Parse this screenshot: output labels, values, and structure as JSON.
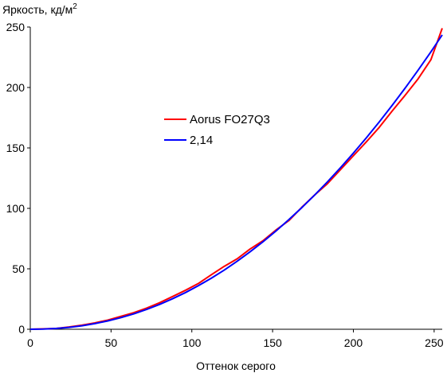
{
  "chart_data": {
    "type": "line",
    "title": "",
    "ylabel_main": "Яркость, кд/м",
    "ylabel_sup": "2",
    "xlabel": "Оттенок серого",
    "xlim": [
      0,
      255
    ],
    "ylim": [
      0,
      250
    ],
    "xticks": [
      0,
      50,
      100,
      150,
      200,
      250
    ],
    "yticks": [
      0,
      50,
      100,
      150,
      200,
      250
    ],
    "grid": false,
    "legend_position": "center-left",
    "series": [
      {
        "name": "Aorus FO27Q3",
        "color": "#ff0000",
        "x": [
          0,
          8,
          16,
          24,
          32,
          40,
          48,
          56,
          64,
          72,
          80,
          88,
          96,
          104,
          112,
          120,
          128,
          136,
          144,
          152,
          160,
          168,
          176,
          184,
          192,
          200,
          208,
          216,
          224,
          232,
          240,
          248,
          255
        ],
        "y": [
          0,
          0.3,
          0.7,
          1.9,
          3.4,
          5.3,
          7.6,
          10.6,
          13.7,
          17.5,
          21.9,
          27,
          32.2,
          37.8,
          45,
          52,
          58.2,
          66.3,
          73.2,
          82,
          89.8,
          100.8,
          111,
          120.5,
          132,
          143.5,
          155,
          167,
          180.5,
          193.5,
          207,
          223,
          249
        ]
      },
      {
        "name": "2,14",
        "color": "#0000ff",
        "x": [
          0,
          8,
          16,
          24,
          32,
          40,
          48,
          56,
          64,
          72,
          80,
          88,
          96,
          104,
          112,
          120,
          128,
          136,
          144,
          152,
          160,
          168,
          176,
          184,
          192,
          200,
          208,
          216,
          224,
          232,
          240,
          248,
          255
        ],
        "y": [
          0,
          0.15,
          0.68,
          1.6,
          2.9,
          4.7,
          6.9,
          9.6,
          12.7,
          16.4,
          20.5,
          25.2,
          30.3,
          36,
          42.2,
          48.9,
          56.2,
          64,
          72.3,
          81.2,
          90.6,
          100.5,
          111,
          122,
          133.6,
          145.7,
          158.3,
          171.5,
          185.2,
          199.4,
          214.2,
          229.5,
          243.5
        ]
      }
    ]
  }
}
